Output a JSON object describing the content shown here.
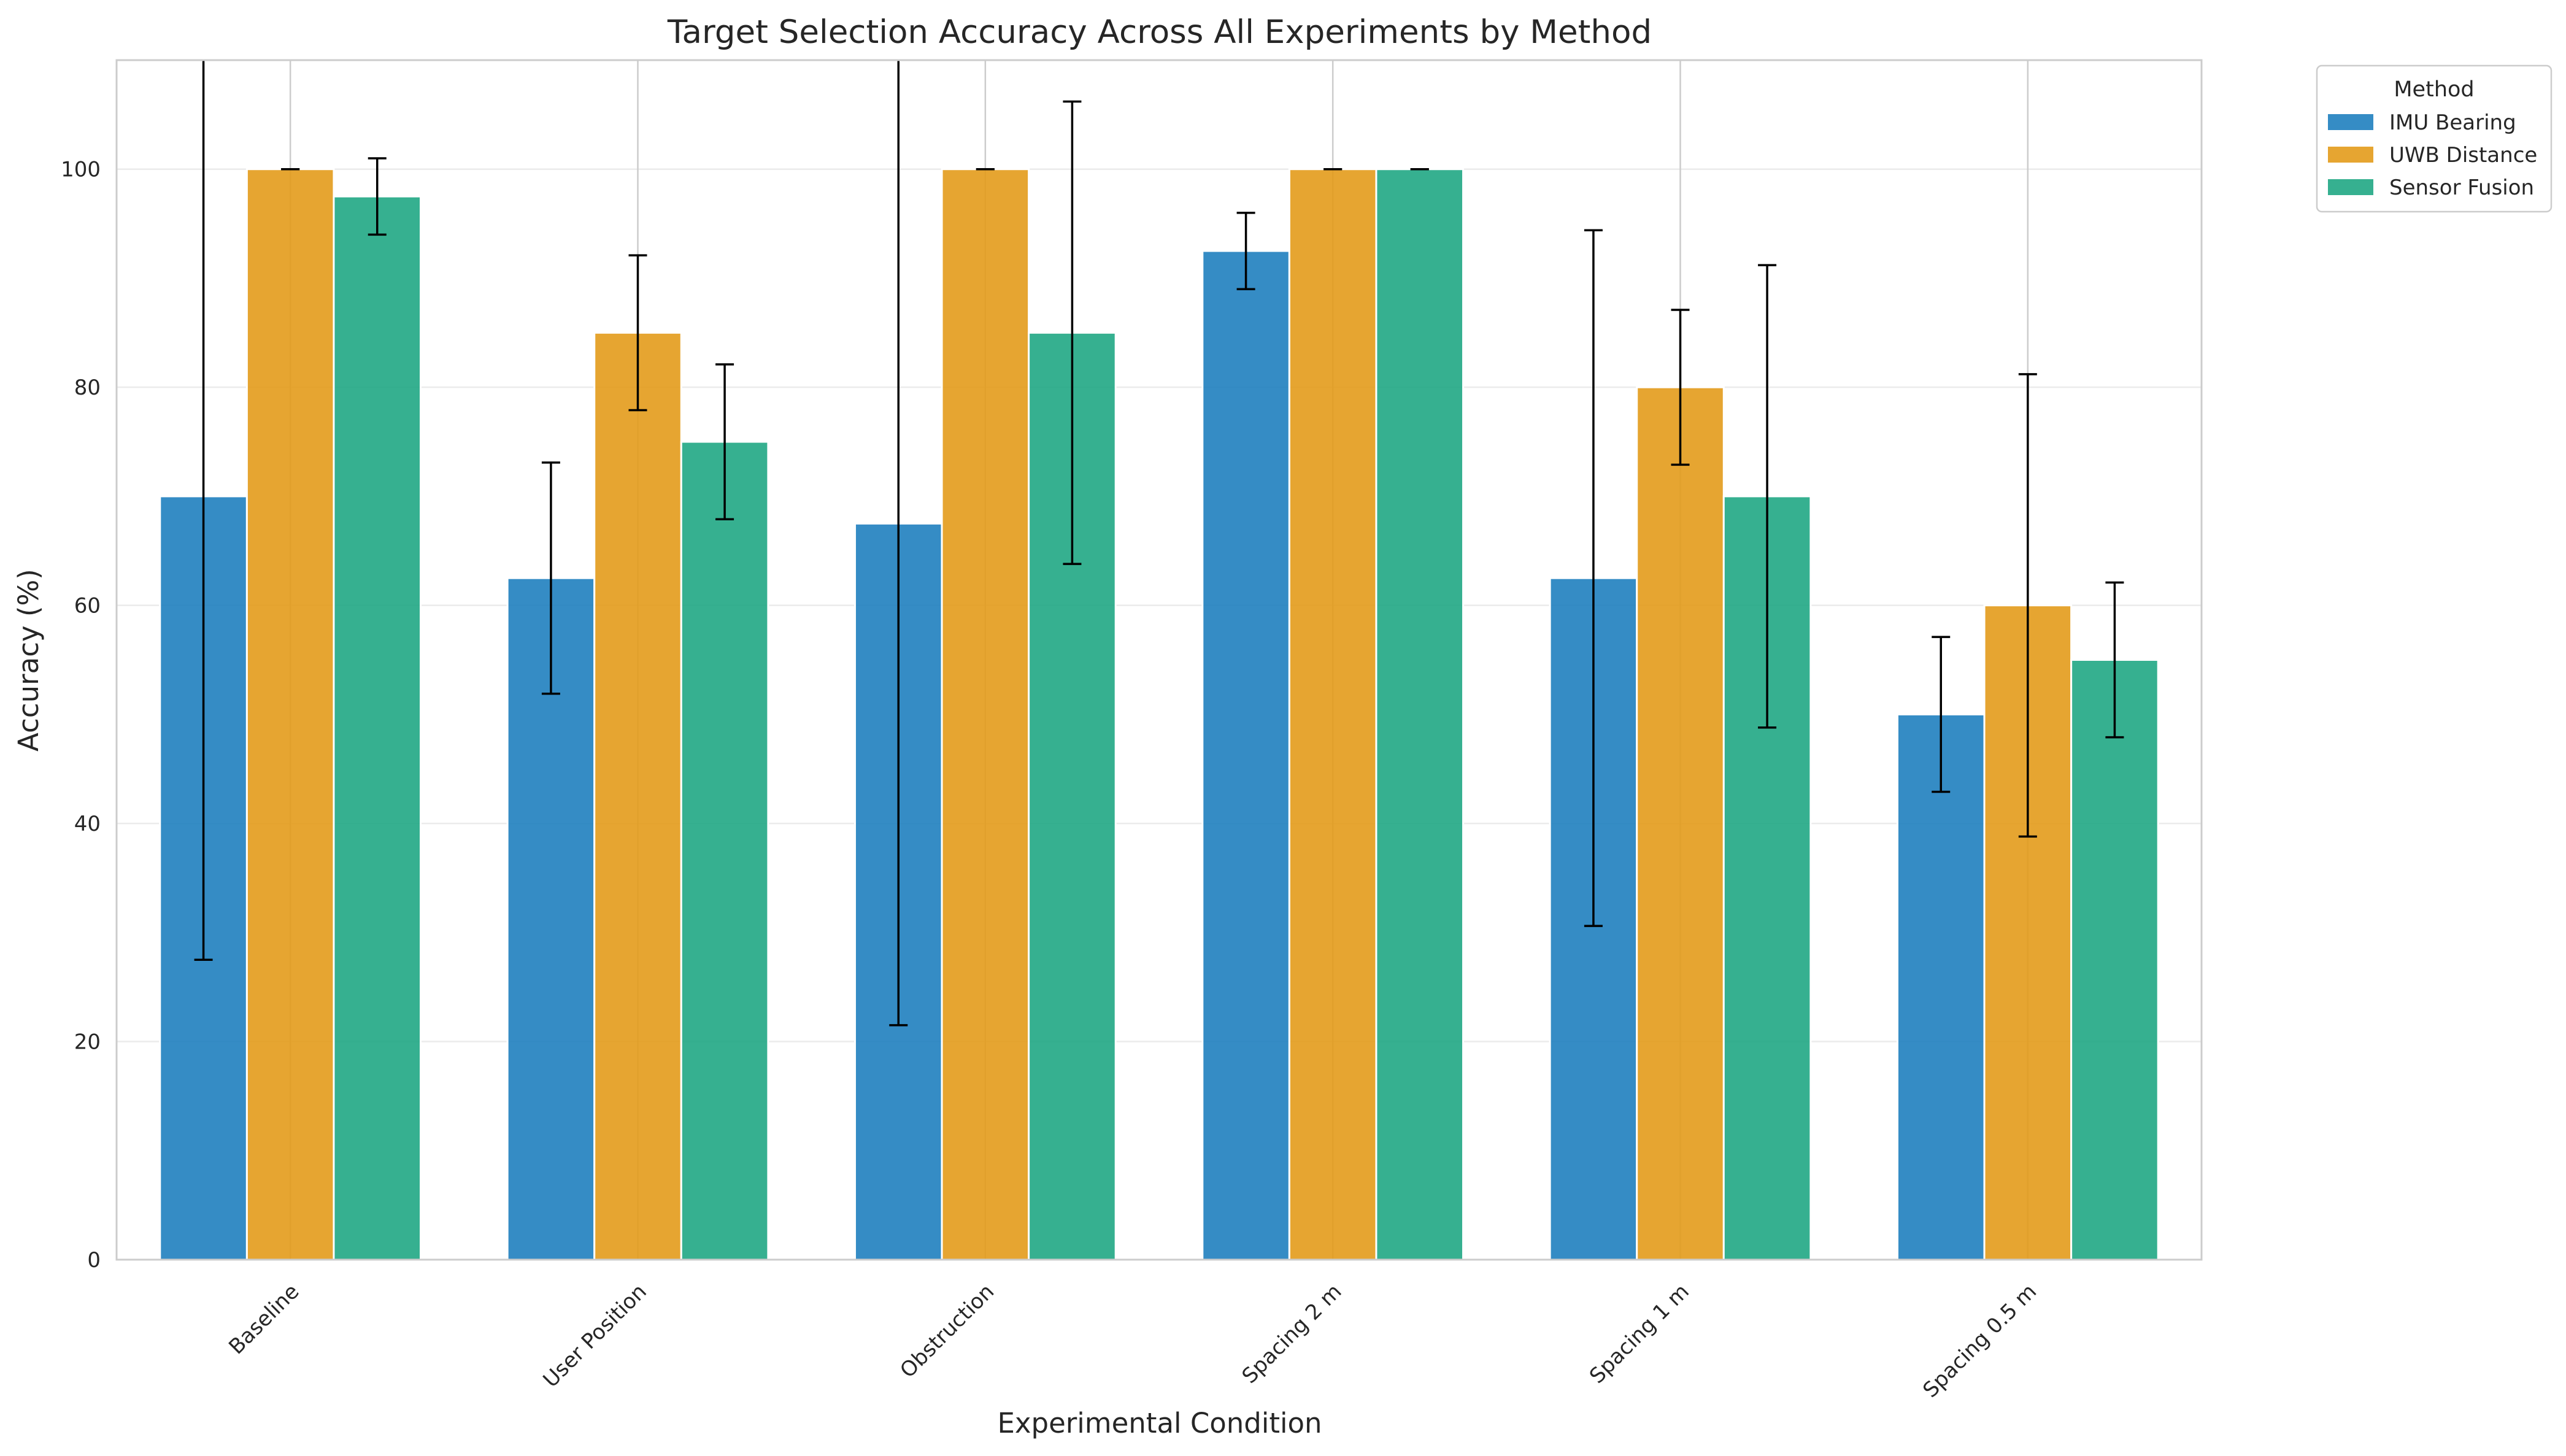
{
  "chart_data": {
    "type": "bar",
    "title": "Target Selection Accuracy Across All Experiments by Method",
    "xlabel": "Experimental Condition",
    "ylabel": "Accuracy (%)",
    "ylim": [
      0,
      110
    ],
    "yticks": [
      0,
      20,
      40,
      60,
      80,
      100
    ],
    "grid": true,
    "legend": {
      "title": "Method",
      "placement": "outside-top-right"
    },
    "categories": [
      "Baseline",
      "User Position",
      "Obstruction",
      "Spacing 2 m",
      "Spacing 1 m",
      "Spacing 0.5 m"
    ],
    "series": [
      {
        "name": "IMU Bearing",
        "color": "#1f7fbf",
        "values": [
          70,
          62.5,
          67.5,
          92.5,
          62.5,
          50
        ],
        "errors": [
          42.5,
          10.6,
          46,
          3.5,
          31.9,
          7.1
        ]
      },
      {
        "name": "UWB Distance",
        "color": "#e39b1b",
        "values": [
          100,
          85,
          100,
          100,
          80,
          60
        ],
        "errors": [
          0,
          7.1,
          0,
          0,
          7.1,
          21.2
        ]
      },
      {
        "name": "Sensor Fusion",
        "color": "#20a784",
        "values": [
          97.5,
          75,
          85,
          100,
          70,
          55
        ],
        "errors": [
          3.5,
          7.1,
          21.2,
          0,
          21.2,
          7.1
        ]
      }
    ]
  }
}
